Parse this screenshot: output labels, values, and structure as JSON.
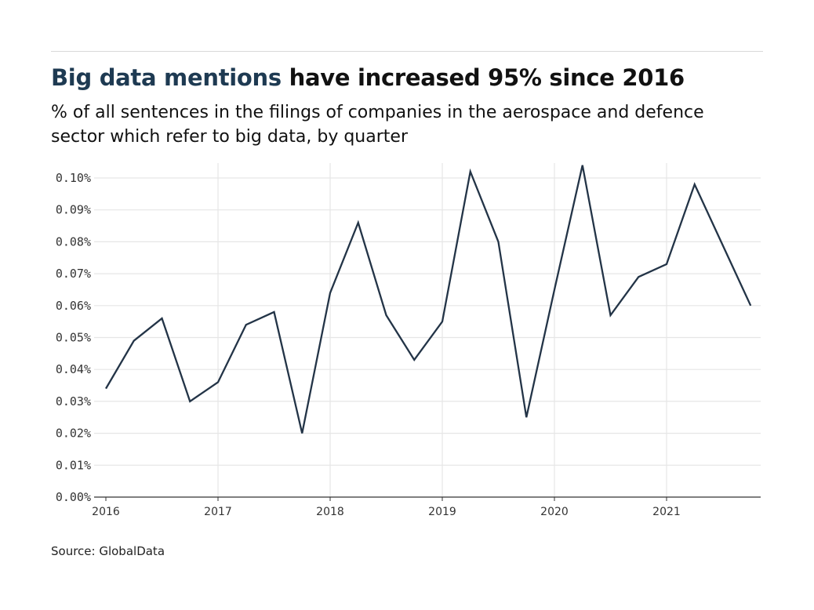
{
  "header": {
    "title_highlight": "Big data mentions",
    "title_rest": " have increased 95% since 2016",
    "subtitle": "% of all sentences in the filings of companies in the aerospace and defence sector which refer to big data, by quarter"
  },
  "footer": {
    "source": "Source: GlobalData"
  },
  "chart_data": {
    "type": "line",
    "x": [
      "2016Q1",
      "2016Q2",
      "2016Q3",
      "2016Q4",
      "2017Q1",
      "2017Q2",
      "2017Q3",
      "2017Q4",
      "2018Q1",
      "2018Q2",
      "2018Q3",
      "2018Q4",
      "2019Q1",
      "2019Q2",
      "2019Q3",
      "2019Q4",
      "2020Q1",
      "2020Q2",
      "2020Q3",
      "2020Q4",
      "2021Q1",
      "2021Q2",
      "2021Q3",
      "2021Q4"
    ],
    "values": [
      0.034,
      0.049,
      0.056,
      0.03,
      0.036,
      0.054,
      0.058,
      0.02,
      0.064,
      0.086,
      0.057,
      0.043,
      0.055,
      0.102,
      0.08,
      0.025,
      0.065,
      0.104,
      0.057,
      0.069,
      0.073,
      0.098,
      0.079,
      0.06
    ],
    "ylim": [
      0,
      0.1
    ],
    "yticks": [
      "0.00%",
      "0.01%",
      "0.02%",
      "0.03%",
      "0.04%",
      "0.05%",
      "0.06%",
      "0.07%",
      "0.08%",
      "0.09%",
      "0.10%"
    ],
    "xticks": [
      "2016",
      "2017",
      "2018",
      "2019",
      "2020",
      "2021"
    ],
    "grid": true,
    "line_color": "#233447",
    "highlight_color": "#1e3a52"
  }
}
